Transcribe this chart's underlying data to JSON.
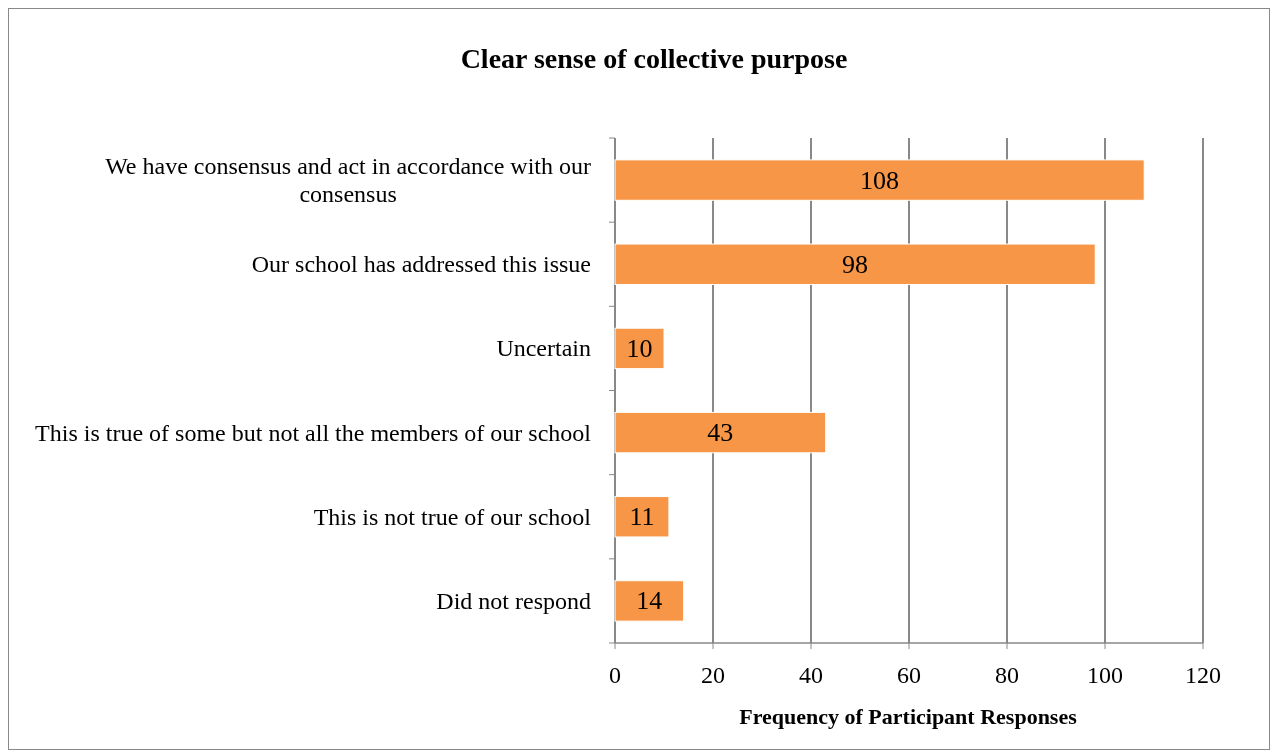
{
  "chart_data": {
    "type": "bar",
    "orientation": "horizontal",
    "title": "Clear sense of collective purpose",
    "xlabel": "Frequency of Participant Responses",
    "categories": [
      "We have consensus and act in accordance with our consensus",
      "Our school has addressed this issue",
      "Uncertain",
      "This is true of some but not all the members of our school",
      "This is not true of our school",
      "Did not respond"
    ],
    "values": [
      108,
      98,
      10,
      43,
      11,
      14
    ],
    "color": "#f79646",
    "xlim": [
      0,
      120
    ],
    "xticks": [
      0,
      20,
      40,
      60,
      80,
      100,
      120
    ],
    "grid": "x",
    "data_labels": true
  }
}
